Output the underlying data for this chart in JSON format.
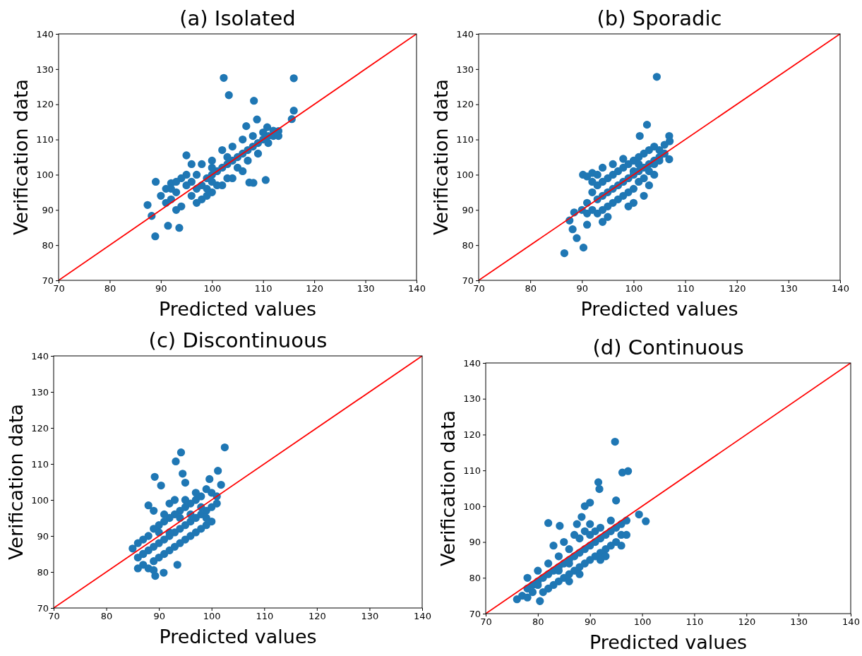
{
  "chart_data": [
    {
      "type": "scatter",
      "title": "(a) Isolated",
      "xlabel": "Predicted values",
      "ylabel": "Verification data",
      "xlim": [
        70,
        140
      ],
      "ylim": [
        70,
        140
      ],
      "xticks": [
        70,
        80,
        90,
        100,
        110,
        120,
        130,
        140
      ],
      "yticks": [
        70,
        80,
        90,
        100,
        110,
        120,
        130,
        140
      ],
      "marker": "circle",
      "grid": false,
      "series": [
        {
          "color": "#1f77b4",
          "x": [
            102.3,
            103.3,
            116,
            108.2,
            116,
            115.6,
            88.9,
            93.6,
            91.4,
            87.4,
            88.2,
            89,
            92,
            107.3,
            110.5,
            108.1,
            113,
            110.8,
            106.7,
            108.8,
            95,
            96,
            97,
            98,
            99,
            100,
            101,
            102,
            103,
            104,
            105,
            106,
            107,
            108,
            109,
            110,
            111,
            112,
            96,
            98,
            100,
            102,
            104,
            106,
            93,
            92,
            94,
            96,
            95,
            98,
            100,
            102,
            104,
            106,
            108,
            110,
            112,
            113,
            101,
            103,
            99,
            97,
            94,
            92,
            90,
            91,
            93,
            105,
            107,
            109,
            111,
            103,
            100,
            97,
            95,
            93,
            91,
            100,
            99
          ],
          "values": [
            127.5,
            122.6,
            127.4,
            121,
            118.2,
            115.8,
            82.5,
            84.9,
            85.5,
            91.4,
            88.3,
            98,
            97.6,
            97.8,
            98.5,
            97.7,
            112.4,
            113.5,
            113.8,
            115.7,
            100,
            98,
            96,
            97,
            99,
            100,
            101,
            102,
            103,
            104,
            105,
            106,
            107,
            108,
            109,
            110,
            111,
            111,
            94,
            93,
            95,
            97,
            99,
            101,
            95,
            96,
            99,
            103,
            105.5,
            103,
            104,
            107,
            108,
            110,
            111,
            112,
            112.5,
            111,
            97,
            99,
            94,
            92,
            91,
            93,
            94,
            92,
            90,
            102,
            104,
            106,
            109,
            105,
            102,
            100,
            97,
            98,
            96,
            98,
            96
          ]
        },
        {
          "type": "line",
          "color": "#ff0000",
          "marker": "none",
          "x": [
            70,
            140
          ],
          "values": [
            70,
            140
          ]
        }
      ]
    },
    {
      "type": "scatter",
      "title": "(b) Sporadic",
      "xlabel": "Predicted values",
      "ylabel": "Verification data",
      "xlim": [
        70,
        140
      ],
      "ylim": [
        70,
        140
      ],
      "xticks": [
        70,
        80,
        90,
        100,
        110,
        120,
        130,
        140
      ],
      "yticks": [
        70,
        80,
        90,
        100,
        110,
        120,
        130,
        140
      ],
      "marker": "circle",
      "grid": false,
      "series": [
        {
          "color": "#1f77b4",
          "x": [
            104.5,
            102.6,
            101.2,
            106.9,
            107,
            106.9,
            86.6,
            90.3,
            89,
            88.2,
            88.5,
            87.6,
            91,
            94,
            90.2,
            91,
            92,
            92,
            93,
            94,
            95,
            96,
            97,
            98,
            99,
            100,
            101,
            102,
            103,
            104,
            105,
            106,
            105,
            104,
            103,
            102,
            101,
            100,
            99,
            98,
            97,
            96,
            95,
            94,
            93,
            92,
            91,
            92,
            93,
            94,
            96,
            98,
            100,
            101,
            97,
            98,
            99,
            96,
            95,
            94,
            93,
            100,
            101,
            102,
            103,
            104,
            105,
            106,
            103,
            102,
            99,
            95,
            90,
            91,
            100,
            104
          ],
          "values": [
            127.8,
            114.2,
            111,
            111,
            109.5,
            104.4,
            77.7,
            79.3,
            82,
            84.5,
            89.3,
            87,
            85.8,
            86.6,
            100,
            99.5,
            100.5,
            95,
            97,
            98,
            99,
            100,
            101,
            102,
            103,
            104,
            105,
            106,
            107,
            108,
            107,
            106,
            104,
            103,
            101,
            99,
            98,
            96,
            95,
            94,
            93,
            92,
            91,
            90,
            89,
            90,
            92,
            98,
            100,
            102,
            103,
            104.5,
            101,
            103,
            97,
            98,
            99,
            96,
            95,
            94,
            93,
            100,
            101,
            102,
            103,
            104,
            105,
            108.5,
            97,
            94,
            91,
            88,
            90,
            89,
            92,
            100
          ]
        },
        {
          "type": "line",
          "color": "#ff0000",
          "marker": "none",
          "x": [
            70,
            140
          ],
          "values": [
            70,
            140
          ]
        }
      ]
    },
    {
      "type": "scatter",
      "title": "(c) Discontinuous",
      "xlabel": "Predicted values",
      "ylabel": "Verification data",
      "xlim": [
        70,
        140
      ],
      "ylim": [
        70,
        140
      ],
      "xticks": [
        70,
        80,
        90,
        100,
        110,
        120,
        130,
        140
      ],
      "yticks": [
        70,
        80,
        90,
        100,
        110,
        120,
        130,
        140
      ],
      "marker": "circle",
      "grid": false,
      "series": [
        {
          "color": "#1f77b4",
          "x": [
            102.5,
            94.2,
            93.2,
            94.5,
            89.2,
            95,
            90.4,
            101.2,
            99.6,
            85,
            89.3,
            90.9,
            93.5,
            88,
            101.8,
            86,
            87,
            88,
            89,
            90,
            91,
            92,
            93,
            94,
            95,
            96,
            97,
            98,
            99,
            100,
            101,
            101,
            100,
            99,
            98,
            97,
            96,
            95,
            94,
            93,
            92,
            91,
            90,
            89,
            88,
            87,
            86,
            87,
            88,
            89,
            90,
            91,
            92,
            93,
            94,
            95,
            96,
            97,
            98,
            99,
            100,
            99,
            92,
            93,
            95,
            97,
            89,
            91,
            94,
            92,
            90,
            96,
            98,
            87,
            86,
            89
          ],
          "values": [
            114.6,
            113.2,
            110.7,
            107.3,
            106.4,
            104.8,
            104,
            108.1,
            105.8,
            86.5,
            78.9,
            79.8,
            82,
            98.5,
            104.2,
            84,
            85,
            86,
            87,
            88,
            89,
            90,
            91,
            92,
            93,
            94,
            95,
            96,
            97,
            98,
            99,
            101,
            102,
            103,
            101,
            100,
            99,
            98,
            97,
            96,
            95,
            94,
            93,
            92,
            90,
            89,
            88,
            82,
            81,
            83,
            84,
            85,
            86,
            87,
            88,
            89,
            90,
            91,
            92,
            93,
            94,
            95,
            99,
            100,
            100,
            102,
            97,
            96,
            95,
            91,
            91,
            96,
            98,
            85,
            81,
            80.5
          ]
        },
        {
          "type": "line",
          "color": "#ff0000",
          "marker": "none",
          "x": [
            70,
            140
          ],
          "values": [
            70,
            140
          ]
        }
      ]
    },
    {
      "type": "scatter",
      "title": "(d) Continuous",
      "xlabel": "Predicted values",
      "ylabel": "Verification data",
      "xlim": [
        70,
        140
      ],
      "ylim": [
        70,
        140
      ],
      "xticks": [
        70,
        80,
        90,
        100,
        110,
        120,
        130,
        140
      ],
      "yticks": [
        70,
        80,
        90,
        100,
        110,
        120,
        130,
        140
      ],
      "marker": "circle",
      "grid": false,
      "series": [
        {
          "color": "#1f77b4",
          "x": [
            94.8,
            97.3,
            96.2,
            91.6,
            91.8,
            99.4,
            100.7,
            80.4,
            76,
            82,
            84.2,
            87.5,
            88.4,
            89,
            90,
            95,
            77,
            78,
            79,
            80,
            81,
            82,
            83,
            84,
            85,
            86,
            87,
            88,
            89,
            90,
            91,
            92,
            93,
            94,
            95,
            96,
            97,
            96,
            95,
            94,
            93,
            92,
            91,
            90,
            89,
            88,
            87,
            86,
            85,
            84,
            83,
            82,
            81,
            79,
            78,
            80,
            82,
            84,
            86,
            88,
            89,
            90,
            87,
            85,
            83,
            88,
            86,
            93,
            92,
            97,
            96,
            90,
            92,
            94,
            91,
            84,
            86,
            80,
            78
          ],
          "values": [
            118,
            109.8,
            109.4,
            106.7,
            104.8,
            97.7,
            95.8,
            73.5,
            74,
            95.3,
            94.5,
            95,
            97,
            100,
            101,
            101.6,
            75,
            77,
            78,
            79,
            80,
            81,
            82,
            83,
            84,
            85,
            86,
            87,
            88,
            89,
            90,
            91,
            92,
            93,
            94,
            95,
            96,
            92,
            90,
            89,
            88,
            87,
            86,
            85,
            84,
            83,
            82,
            81,
            80,
            79,
            78,
            77,
            76,
            76,
            74.5,
            82,
            84,
            86,
            88,
            91,
            93,
            95,
            92,
            90,
            89,
            81,
            79,
            86,
            85,
            92,
            89,
            92,
            94,
            96,
            93,
            82,
            84,
            78,
            80
          ]
        },
        {
          "type": "line",
          "color": "#ff0000",
          "marker": "none",
          "x": [
            70,
            140
          ],
          "values": [
            70,
            140
          ]
        }
      ]
    }
  ]
}
